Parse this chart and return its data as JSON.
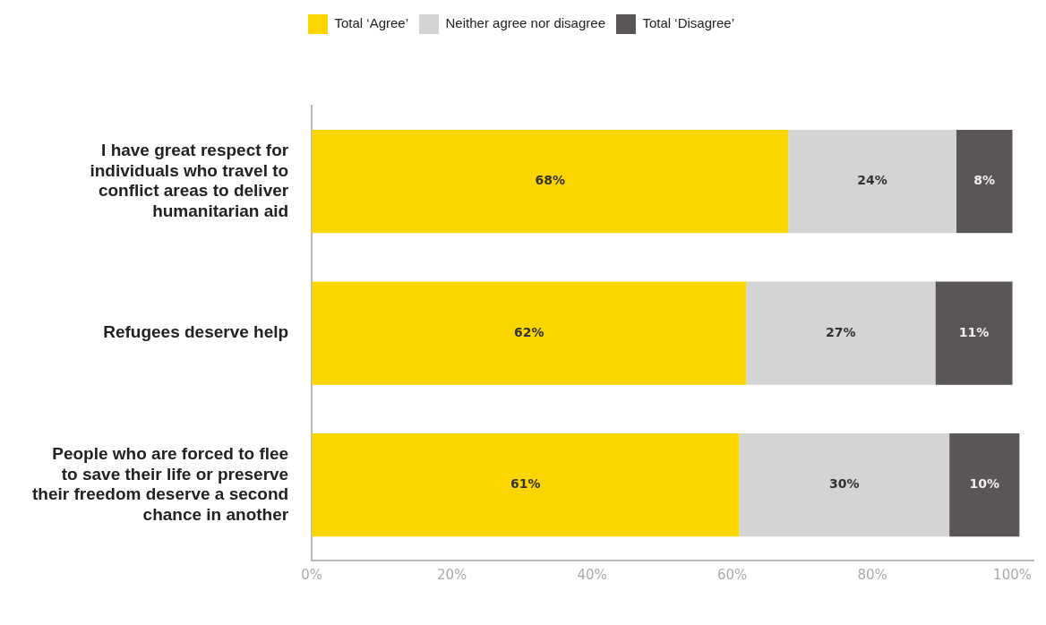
{
  "chart_data": {
    "type": "bar",
    "orientation": "horizontal",
    "stacked": true,
    "categories": [
      "I have great respect for individuals who travel to conflict areas to deliver humanitarian aid",
      "Refugees deserve help",
      "People who are forced to flee to save their life or preserve their freedom deserve a second chance in another"
    ],
    "series": [
      {
        "name": "Total ‘Agree’",
        "color": "#fdd600",
        "values": [
          68,
          62,
          61
        ],
        "value_labels": [
          "68%",
          "62%",
          "61%"
        ]
      },
      {
        "name": "Neither agree nor disagree",
        "color": "#d4d4d4",
        "values": [
          24,
          27,
          30
        ],
        "value_labels": [
          "24%",
          "27%",
          "30%"
        ]
      },
      {
        "name": "Total ‘Disagree’",
        "color": "#5a5655",
        "values": [
          8,
          11,
          10
        ],
        "value_labels": [
          "8%",
          "11%",
          "10%"
        ]
      }
    ],
    "xlim": [
      0,
      103
    ],
    "xticks": [
      {
        "value": 0,
        "label": "0%"
      },
      {
        "value": 20,
        "label": "20%"
      },
      {
        "value": 40,
        "label": "40%"
      },
      {
        "value": 60,
        "label": "60%"
      },
      {
        "value": 80,
        "label": "80%"
      },
      {
        "value": 100,
        "label": "100%"
      }
    ],
    "legend": "top",
    "grid": false
  }
}
